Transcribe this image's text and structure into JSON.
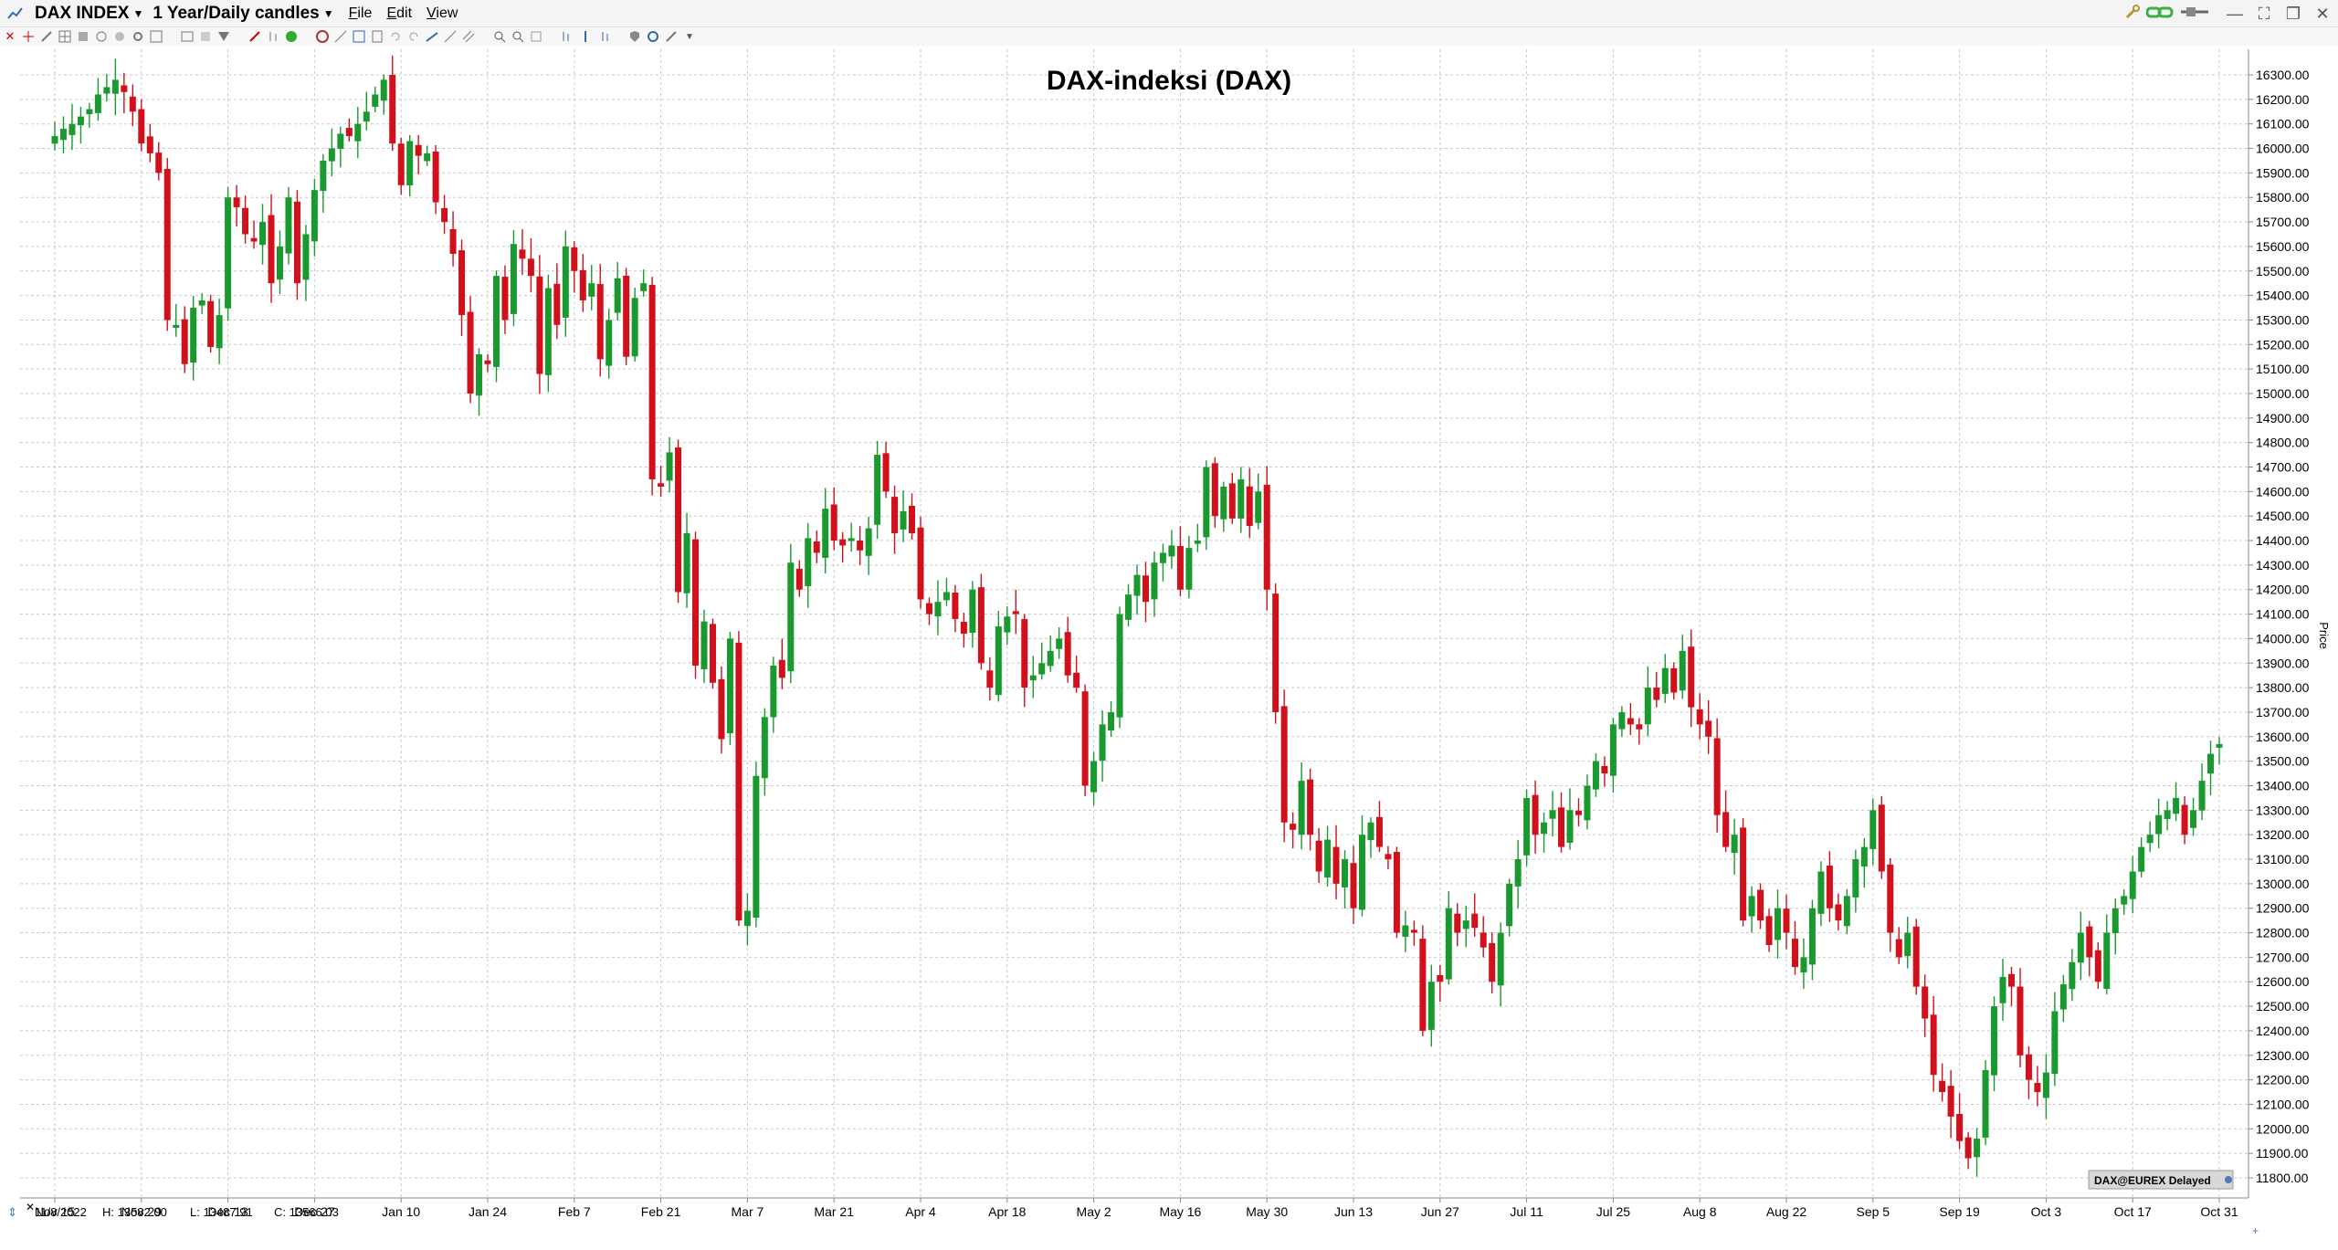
{
  "window": {
    "symbol_label": "DAX INDEX",
    "period_label": "1 Year/Daily candles",
    "menu": [
      {
        "label": "File",
        "underline": "F",
        "rest": "ile"
      },
      {
        "label": "Edit",
        "underline": "E",
        "rest": "dit"
      },
      {
        "label": "View",
        "underline": "V",
        "rest": "iew"
      }
    ]
  },
  "colors": {
    "up": "#1a9a2e",
    "down": "#d0101a",
    "grid": "#c8c8c8"
  },
  "footer": {
    "date": "11/8/2022",
    "high": "H: 13582.00",
    "low": "L: 13487.91",
    "close": "C: 13566.03",
    "source_badge": "DAX@EUREX Delayed"
  },
  "chart_data": {
    "type": "candlestick",
    "title": "DAX-indeksi (DAX)",
    "ylabel": "Price",
    "ylim": [
      11700,
      16400
    ],
    "y_ticks": [
      11800,
      11900,
      12000,
      12100,
      12200,
      12300,
      12400,
      12500,
      12600,
      12700,
      12800,
      12900,
      13000,
      13100,
      13200,
      13300,
      13400,
      13500,
      13600,
      13700,
      13800,
      13900,
      14000,
      14100,
      14200,
      14300,
      14400,
      14500,
      14600,
      14700,
      14800,
      14900,
      15000,
      15100,
      15200,
      15300,
      15400,
      15500,
      15600,
      15700,
      15800,
      15900,
      16000,
      16100,
      16200,
      16300
    ],
    "y_tick_labels": [
      "11800.00",
      "11900.00",
      "12000.00",
      "12100.00",
      "12200.00",
      "12300.00",
      "12400.00",
      "12500.00",
      "12600.00",
      "12700.00",
      "12800.00",
      "12900.00",
      "13000.00",
      "13100.00",
      "13200.00",
      "13300.00",
      "13400.00",
      "13500.00",
      "13600.00",
      "13700.00",
      "13800.00",
      "13900.00",
      "14000.00",
      "14100.00",
      "14200.00",
      "14300.00",
      "14400.00",
      "14500.00",
      "14600.00",
      "14700.00",
      "14800.00",
      "14900.00",
      "15000.00",
      "15100.00",
      "15200.00",
      "15300.00",
      "15400.00",
      "15500.00",
      "15600.00",
      "15700.00",
      "15800.00",
      "15900.00",
      "16000.00",
      "16100.00",
      "16200.00",
      "16300.00"
    ],
    "x_ticks": [
      {
        "label": "Nov 15",
        "index": 0
      },
      {
        "label": "Nov 29",
        "index": 10
      },
      {
        "label": "Dec 13",
        "index": 20
      },
      {
        "label": "Dec 27",
        "index": 30
      },
      {
        "label": "Jan 10",
        "index": 40
      },
      {
        "label": "Jan 24",
        "index": 50
      },
      {
        "label": "Feb 7",
        "index": 60
      },
      {
        "label": "Feb 21",
        "index": 70
      },
      {
        "label": "Mar 7",
        "index": 80
      },
      {
        "label": "Mar 21",
        "index": 90
      },
      {
        "label": "Apr 4",
        "index": 100
      },
      {
        "label": "Apr 18",
        "index": 110
      },
      {
        "label": "May 2",
        "index": 120
      },
      {
        "label": "May 16",
        "index": 130
      },
      {
        "label": "May 30",
        "index": 140
      },
      {
        "label": "Jun 13",
        "index": 150
      },
      {
        "label": "Jun 27",
        "index": 160
      },
      {
        "label": "Jul 11",
        "index": 170
      },
      {
        "label": "Jul 25",
        "index": 180
      },
      {
        "label": "Aug 8",
        "index": 190
      },
      {
        "label": "Aug 22",
        "index": 200
      },
      {
        "label": "Sep 5",
        "index": 210
      },
      {
        "label": "Sep 19",
        "index": 220
      },
      {
        "label": "Oct 3",
        "index": 230
      },
      {
        "label": "Oct 17",
        "index": 240
      },
      {
        "label": "Oct 31",
        "index": 250
      }
    ],
    "grid": true,
    "close_path": [
      16050,
      16080,
      16100,
      16130,
      16160,
      16220,
      16250,
      16280,
      16230,
      16150,
      16020,
      15980,
      15900,
      15300,
      15280,
      15120,
      15350,
      15380,
      15190,
      15320,
      15800,
      15760,
      15650,
      15620,
      15700,
      15450,
      15600,
      15800,
      15450,
      15650,
      15830,
      15950,
      16000,
      16060,
      16050,
      16100,
      16150,
      16220,
      16280,
      16020,
      15850,
      16030,
      15970,
      15980,
      15780,
      15700,
      15570,
      15320,
      15000,
      15160,
      15120,
      15480,
      15300,
      15610,
      15550,
      15480,
      15080,
      15430,
      15280,
      15600,
      15500,
      15380,
      15450,
      15140,
      15300,
      15470,
      15150,
      15390,
      15450,
      14650,
      14620,
      14760,
      14190,
      14430,
      13890,
      14070,
      13820,
      13590,
      14000,
      12850,
      12890,
      13440,
      13680,
      13890,
      13840,
      14310,
      14200,
      14410,
      14350,
      14530,
      14400,
      14380,
      14410,
      14360,
      14450,
      14750,
      14600,
      14430,
      14520,
      14430,
      14160,
      14100,
      14150,
      14190,
      14080,
      14020,
      14200,
      13900,
      13800,
      14050,
      14090,
      14100,
      13800,
      13850,
      13900,
      13950,
      14000,
      13850,
      13800,
      13400,
      13500,
      13650,
      13700,
      14100,
      14180,
      14260,
      14150,
      14310,
      14350,
      14380,
      14200,
      14370,
      14400,
      14700,
      14500,
      14620,
      14490,
      14650,
      14460,
      14600,
      14200,
      13700,
      13250,
      13220,
      13420,
      13200,
      13050,
      13180,
      13000,
      13100,
      12900,
      13200,
      13250,
      13150,
      13100,
      12800,
      12830,
      12800,
      12400,
      12600,
      12600,
      12900,
      12800,
      12850,
      12820,
      12740,
      12600,
      12800,
      13000,
      13100,
      13350,
      13200,
      13250,
      13300,
      13150,
      13300,
      13280,
      13400,
      13500,
      13450,
      13650,
      13700,
      13650,
      13630,
      13800,
      13750,
      13880,
      13780,
      13950,
      13720,
      13650,
      13600,
      13280,
      13150,
      13200,
      12850,
      12950,
      12850,
      12750,
      12900,
      12800,
      12660,
      12700,
      12900,
      13050,
      12900,
      12850,
      12950,
      13100,
      13150,
      13300,
      13050,
      12800,
      12700,
      12800,
      12580,
      12450,
      12220,
      12150,
      12050,
      11950,
      11880,
      11960,
      12240,
      12500,
      12620,
      12580,
      12300,
      12200,
      12150,
      12230,
      12480,
      12590,
      12680,
      12800,
      12700,
      12600,
      12800,
      12900,
      12950,
      13050,
      13150,
      13200,
      13280,
      13300,
      13350,
      13200,
      13300,
      13420,
      13530,
      13570
    ],
    "note": "close_path: approximate daily closing values read from the candles, one per trading day"
  }
}
